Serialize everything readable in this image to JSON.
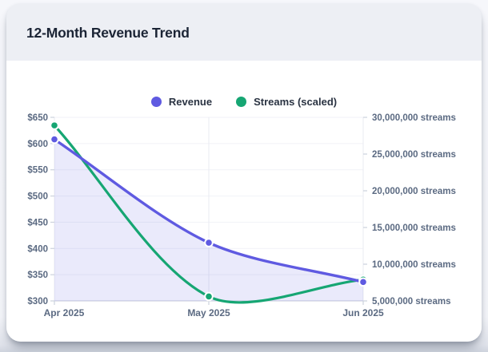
{
  "card": {
    "type_label": "revenue-trend-card"
  },
  "chart_data": {
    "type": "line",
    "title": "12-Month Revenue Trend",
    "categories": [
      "Apr 2025",
      "May 2025",
      "Jun 2025"
    ],
    "series": [
      {
        "name": "Revenue",
        "yaxis": "left",
        "color": "#5f5ae1",
        "fill": true,
        "fill_color": "rgba(95,90,225,0.13)",
        "values": [
          608,
          411,
          336
        ]
      },
      {
        "name": "Streams (scaled)",
        "yaxis": "right",
        "color": "#16a673",
        "fill": false,
        "values": [
          28900000,
          5600000,
          7900000
        ]
      }
    ],
    "y_left": {
      "min": 300,
      "max": 650,
      "unit": "$",
      "tick_labels": [
        "$650",
        "$600",
        "$550",
        "$500",
        "$450",
        "$400",
        "$350",
        "$300"
      ]
    },
    "y_right": {
      "min": 5000000,
      "max": 30000000,
      "unit": "streams",
      "tick_labels": [
        "30,000,000 streams",
        "25,000,000 streams",
        "20,000,000 streams",
        "15,000,000 streams",
        "10,000,000 streams",
        "5,000,000 streams"
      ]
    },
    "legend_position": "top",
    "grid": true,
    "point_style": "circle"
  }
}
